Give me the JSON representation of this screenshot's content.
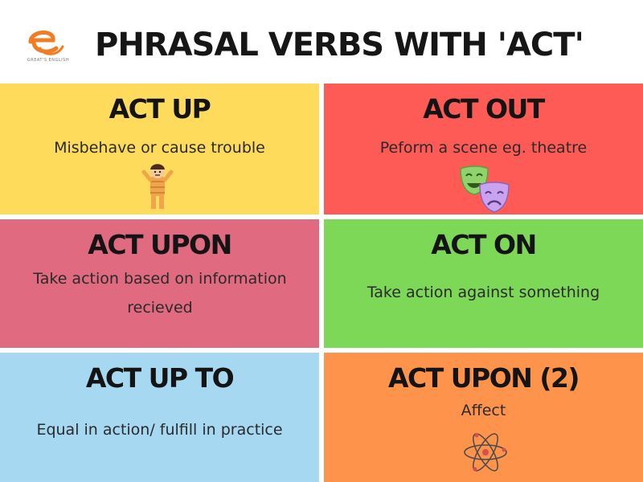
{
  "header": {
    "title": "PHRASAL VERBS WITH 'ACT'",
    "logo_caption": "GREAT'S ENGLISH",
    "logo_icon": "e-letter-logo-icon",
    "logo_color": "#f07d23"
  },
  "cards": [
    {
      "title": "ACT UP",
      "description": "Misbehave or cause trouble",
      "color": "#fedb5b",
      "icon": "misbehaving-child-icon"
    },
    {
      "title": "ACT OUT",
      "description": "Peform a scene eg. theatre",
      "color": "#fe5a56",
      "icon": "theatre-masks-icon"
    },
    {
      "title": "ACT UPON",
      "description": "Take action based on information recieved",
      "color": "#e06a80",
      "icon": ""
    },
    {
      "title": "ACT ON",
      "description": "Take action against something",
      "color": "#7ed857",
      "icon": ""
    },
    {
      "title": "ACT UP TO",
      "description": "Equal in action/ fulfill in practice",
      "color": "#a7d8f1",
      "icon": ""
    },
    {
      "title": "ACT UPON (2)",
      "description": "Affect",
      "color": "#fe944b",
      "icon": "atom-icon"
    }
  ]
}
